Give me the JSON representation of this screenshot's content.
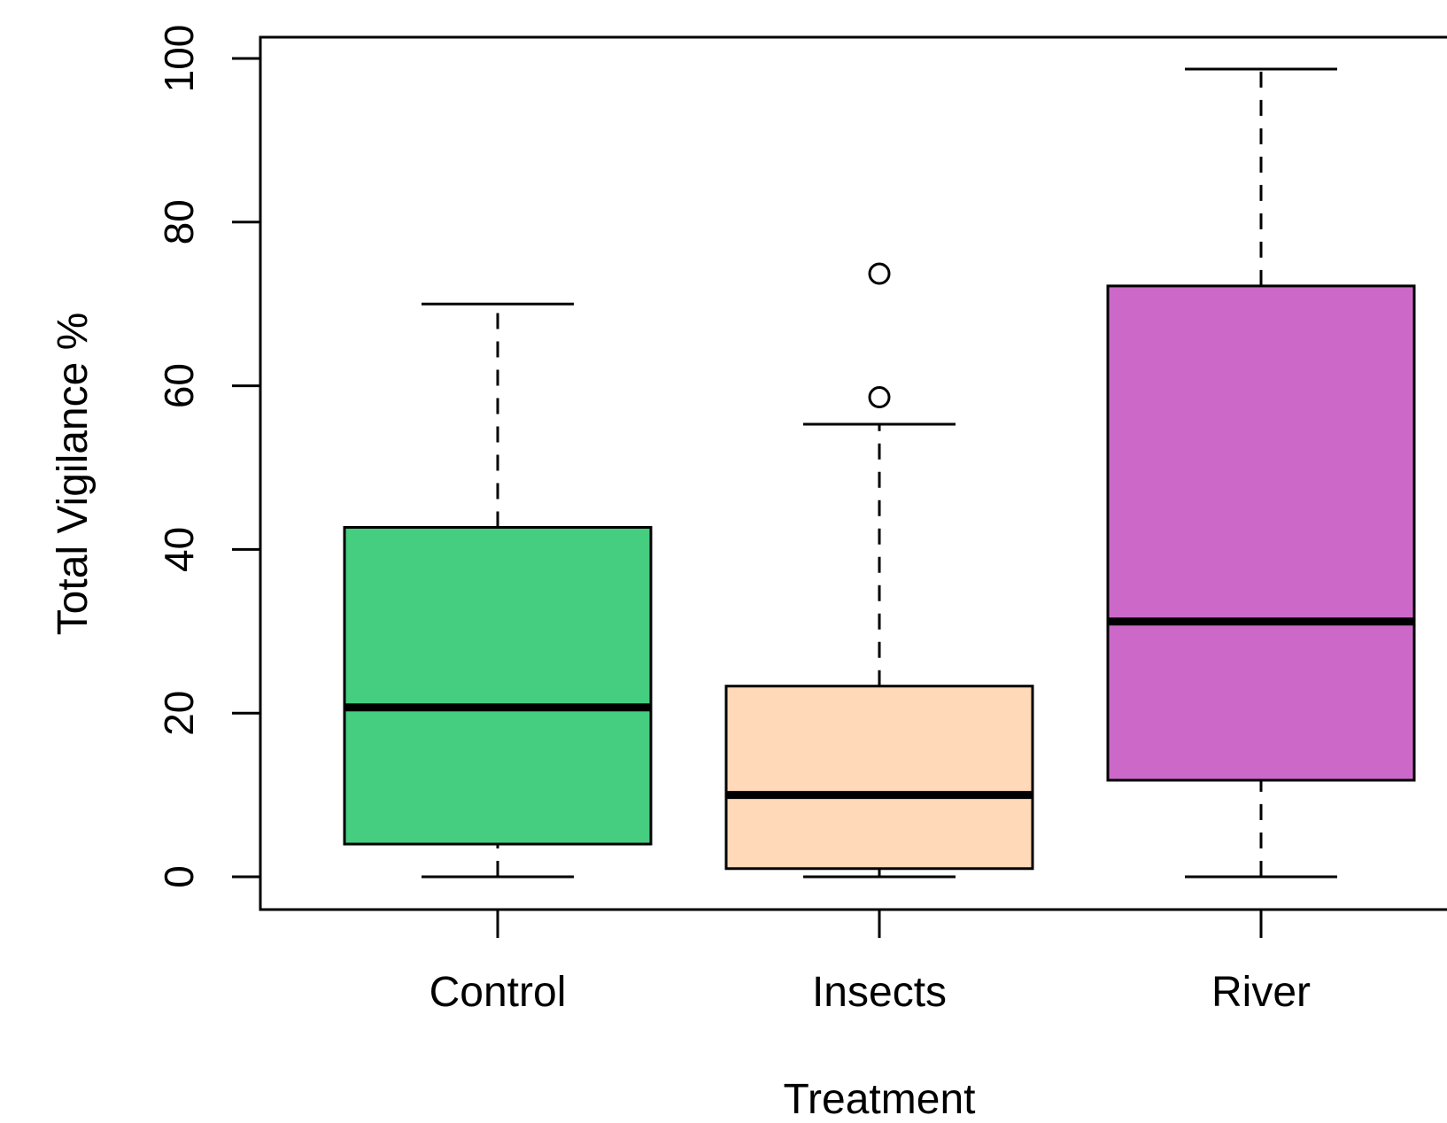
{
  "chart_data": {
    "type": "boxplot",
    "xlabel": "Treatment",
    "ylabel": "Total Vigilance %",
    "ylim": [
      -4,
      102.6
    ],
    "yticks": [
      "0",
      "20",
      "40",
      "60",
      "80",
      "100"
    ],
    "categories": [
      "Control",
      "Insects",
      "River"
    ],
    "colors": [
      "#46CE80",
      "#FFD9B8",
      "#CC68C8"
    ],
    "boxes": [
      {
        "whisker_low": 0,
        "q1": 4,
        "median": 20.7,
        "q3": 42.7,
        "whisker_high": 70,
        "outliers": []
      },
      {
        "whisker_low": 0,
        "q1": 1,
        "median": 10,
        "q3": 23.3,
        "whisker_high": 55.3,
        "outliers": [
          58.6,
          73.7
        ]
      },
      {
        "whisker_low": 0,
        "q1": 11.8,
        "median": 31.2,
        "q3": 72.2,
        "whisker_high": 98.7,
        "outliers": []
      }
    ],
    "grid": false,
    "legend": "none"
  }
}
